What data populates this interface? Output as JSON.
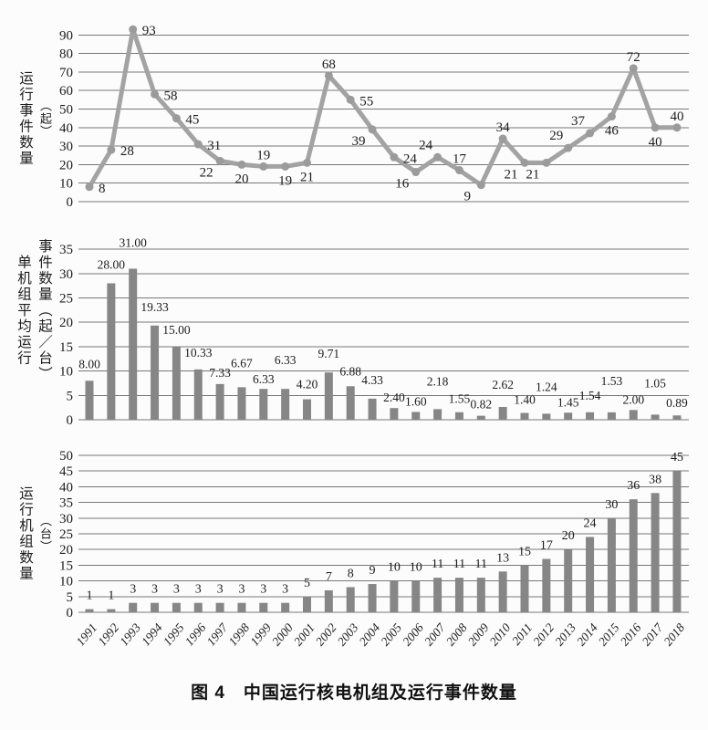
{
  "figure": {
    "caption": "图 4　中国运行核电机组及运行事件数量"
  },
  "categories": [
    "1991",
    "1992",
    "1993",
    "1994",
    "1995",
    "1996",
    "1997",
    "1998",
    "1999",
    "2000",
    "2001",
    "2002",
    "2003",
    "2004",
    "2005",
    "2006",
    "2007",
    "2008",
    "2009",
    "2010",
    "2011",
    "2012",
    "2013",
    "2014",
    "2015",
    "2016",
    "2017",
    "2018"
  ],
  "chart_data": [
    {
      "type": "line",
      "name": "operating-events",
      "title": "",
      "xlabel": "",
      "ylabel": "运行事件数量",
      "unit": "（起）",
      "categories": [
        "1991",
        "1992",
        "1993",
        "1994",
        "1995",
        "1996",
        "1997",
        "1998",
        "1999",
        "2000",
        "2001",
        "2002",
        "2003",
        "2004",
        "2005",
        "2006",
        "2007",
        "2008",
        "2009",
        "2010",
        "2011",
        "2012",
        "2013",
        "2014",
        "2015",
        "2016",
        "2017",
        "2018"
      ],
      "values": [
        8,
        28,
        93,
        58,
        45,
        31,
        22,
        20,
        19,
        19,
        21,
        68,
        55,
        39,
        24,
        16,
        24,
        17,
        9,
        34,
        21,
        21,
        29,
        37,
        46,
        72,
        40,
        40
      ],
      "labels": [
        "8",
        "28",
        "93",
        "58",
        "45",
        "31",
        "22",
        "20",
        "19",
        "19",
        "21",
        "68",
        "55",
        "39",
        "24",
        "16",
        "24",
        "17",
        "9",
        "34",
        "21",
        "21",
        "29",
        "37",
        "46",
        "72",
        "40",
        "40"
      ],
      "ylim": [
        0,
        90
      ],
      "ytick_step": 10,
      "grid": true,
      "legend": "none",
      "label_placement": [
        "right",
        "right",
        "right",
        "right",
        "right",
        "right",
        "below-left",
        "below",
        "above",
        "below",
        "below",
        "above",
        "right",
        "below-left",
        "right",
        "below-left",
        "above-left",
        "above",
        "below-left",
        "above",
        "below-left",
        "below-left",
        "above-left",
        "above-left",
        "below",
        "above",
        "below",
        "above"
      ]
    },
    {
      "type": "bar",
      "name": "events-per-unit",
      "title": "",
      "xlabel": "",
      "ylabel": "单机组平均运行事件数量（起／台）",
      "ylabel_col_left": "单机组平均运行",
      "ylabel_col_right": "事件数量（起／台）",
      "categories": [
        "1991",
        "1992",
        "1993",
        "1994",
        "1995",
        "1996",
        "1997",
        "1998",
        "1999",
        "2000",
        "2001",
        "2002",
        "2003",
        "2004",
        "2005",
        "2006",
        "2007",
        "2008",
        "2009",
        "2010",
        "2011",
        "2012",
        "2013",
        "2014",
        "2015",
        "2016",
        "2017",
        "2018"
      ],
      "values": [
        8.0,
        28.0,
        31.0,
        19.33,
        15.0,
        10.33,
        7.33,
        6.67,
        6.33,
        6.33,
        4.2,
        9.71,
        6.88,
        4.33,
        2.4,
        1.6,
        2.18,
        1.55,
        0.82,
        2.62,
        1.4,
        1.24,
        1.45,
        1.54,
        1.53,
        2.0,
        1.05,
        0.89
      ],
      "labels": [
        "8.00",
        "28.00",
        "31.00",
        "19.33",
        "15.00",
        "10.33",
        "7.33",
        "6.67",
        "6.33",
        "6.33",
        "4.20",
        "9.71",
        "6.88",
        "4.33",
        "2.40",
        "1.60",
        "2.18",
        "1.55",
        "0.82",
        "2.62",
        "1.40",
        "1.24",
        "1.45",
        "1.54",
        "1.53",
        "2.00",
        "1.05",
        "0.89"
      ],
      "ylim": [
        0,
        35
      ],
      "ytick_step": 5,
      "grid": true,
      "legend": "none",
      "label_gap": [
        14,
        16,
        24,
        16,
        14,
        14,
        8,
        22,
        6,
        27,
        12,
        16,
        12,
        16,
        7,
        7,
        26,
        10,
        8,
        20,
        10,
        25,
        7,
        14,
        30,
        7,
        30,
        9
      ]
    },
    {
      "type": "bar",
      "name": "operating-units",
      "title": "",
      "xlabel": "",
      "ylabel": "运行机组数量",
      "unit": "（台）",
      "categories": [
        "1991",
        "1992",
        "1993",
        "1994",
        "1995",
        "1996",
        "1997",
        "1998",
        "1999",
        "2000",
        "2001",
        "2002",
        "2003",
        "2004",
        "2005",
        "2006",
        "2007",
        "2008",
        "2009",
        "2010",
        "2011",
        "2012",
        "2013",
        "2014",
        "2015",
        "2016",
        "2017",
        "2018"
      ],
      "values": [
        1,
        1,
        3,
        3,
        3,
        3,
        3,
        3,
        3,
        3,
        5,
        7,
        8,
        9,
        10,
        10,
        11,
        11,
        11,
        13,
        15,
        17,
        20,
        24,
        30,
        36,
        38,
        45
      ],
      "labels": [
        "1",
        "1",
        "3",
        "3",
        "3",
        "3",
        "3",
        "3",
        "3",
        "3",
        "5",
        "7",
        "8",
        "9",
        "10",
        "10",
        "11",
        "11",
        "11",
        "13",
        "15",
        "17",
        "20",
        "24",
        "30",
        "36",
        "38",
        "45"
      ],
      "ylim": [
        0,
        50
      ],
      "ytick_step": 5,
      "grid": true,
      "legend": "none",
      "label_gap_uniform": 11
    }
  ],
  "style": {
    "line_color": "#a3a3a3",
    "marker_color": "#9b9b9b",
    "bar_color": "#868686",
    "grid_color": "#777777",
    "text_color": "#1c1c1c",
    "background": "#fcfcfc"
  }
}
